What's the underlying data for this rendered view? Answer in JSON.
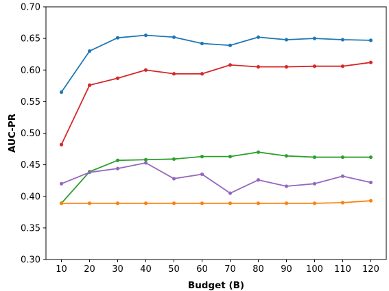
{
  "chart_data": {
    "type": "line",
    "title": "",
    "xlabel": "Budget (B)",
    "ylabel": "AUC-PR",
    "x": [
      10,
      20,
      30,
      40,
      50,
      60,
      70,
      80,
      90,
      100,
      110,
      120
    ],
    "xlim": [
      4.5,
      125.5
    ],
    "ylim": [
      0.3,
      0.7
    ],
    "x_ticks": [
      "10",
      "20",
      "30",
      "40",
      "50",
      "60",
      "70",
      "80",
      "90",
      "100",
      "110",
      "120"
    ],
    "y_ticks": [
      "0.30",
      "0.35",
      "0.40",
      "0.45",
      "0.50",
      "0.55",
      "0.60",
      "0.65",
      "0.70"
    ],
    "y_tick_values": [
      0.3,
      0.35,
      0.4,
      0.45,
      0.5,
      0.55,
      0.6,
      0.65,
      0.7
    ],
    "grid": false,
    "legend": "none",
    "series": [
      {
        "color": "#1f77b4",
        "values": [
          0.565,
          0.63,
          0.651,
          0.655,
          0.652,
          0.642,
          0.639,
          0.652,
          0.648,
          0.65,
          0.648,
          0.647
        ]
      },
      {
        "color": "#d62728",
        "values": [
          0.482,
          0.576,
          0.587,
          0.6,
          0.594,
          0.594,
          0.608,
          0.605,
          0.605,
          0.606,
          0.606,
          0.612
        ]
      },
      {
        "color": "#2ca02c",
        "values": [
          0.389,
          0.439,
          0.457,
          0.458,
          0.459,
          0.463,
          0.463,
          0.47,
          0.464,
          0.462,
          0.462,
          0.462
        ]
      },
      {
        "color": "#9467bd",
        "values": [
          0.42,
          0.438,
          0.444,
          0.453,
          0.428,
          0.435,
          0.405,
          0.426,
          0.416,
          0.42,
          0.432,
          0.422
        ]
      },
      {
        "color": "#ff7f0e",
        "values": [
          0.389,
          0.389,
          0.389,
          0.389,
          0.389,
          0.389,
          0.389,
          0.389,
          0.389,
          0.389,
          0.39,
          0.393
        ]
      }
    ]
  }
}
